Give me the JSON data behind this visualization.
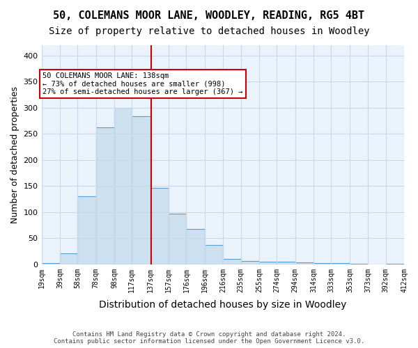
{
  "title1": "50, COLEMANS MOOR LANE, WOODLEY, READING, RG5 4BT",
  "title2": "Size of property relative to detached houses in Woodley",
  "xlabel": "Distribution of detached houses by size in Woodley",
  "ylabel": "Number of detached properties",
  "footnote1": "Contains HM Land Registry data © Crown copyright and database right 2024.",
  "footnote2": "Contains public sector information licensed under the Open Government Licence v3.0.",
  "bin_labels": [
    "19sqm",
    "39sqm",
    "58sqm",
    "78sqm",
    "98sqm",
    "117sqm",
    "137sqm",
    "157sqm",
    "176sqm",
    "196sqm",
    "216sqm",
    "235sqm",
    "255sqm",
    "274sqm",
    "294sqm",
    "314sqm",
    "333sqm",
    "353sqm",
    "373sqm",
    "392sqm",
    "412sqm"
  ],
  "hist_values": [
    2,
    21,
    130,
    263,
    300,
    284,
    147,
    97,
    68,
    37,
    10,
    6,
    5,
    5,
    4,
    3,
    2,
    1,
    0,
    1
  ],
  "bin_edges": [
    19,
    39,
    58,
    78,
    98,
    117,
    137,
    157,
    176,
    196,
    216,
    235,
    255,
    274,
    294,
    314,
    333,
    353,
    373,
    392,
    412
  ],
  "bar_color": "#cce0f0",
  "bar_edge_color": "#5a9fd4",
  "vline_x": 138,
  "vline_color": "#cc0000",
  "annotation_box_color": "#cc0000",
  "annotation_text1": "50 COLEMANS MOOR LANE: 138sqm",
  "annotation_text2": "← 73% of detached houses are smaller (998)",
  "annotation_text3": "27% of semi-detached houses are larger (367) →",
  "ylim": [
    0,
    420
  ],
  "yticks": [
    0,
    50,
    100,
    150,
    200,
    250,
    300,
    350,
    400
  ],
  "grid_color": "#c8d8e8",
  "bg_color": "#eaf2fb",
  "title1_fontsize": 11,
  "title2_fontsize": 10,
  "xlabel_fontsize": 10,
  "ylabel_fontsize": 9
}
